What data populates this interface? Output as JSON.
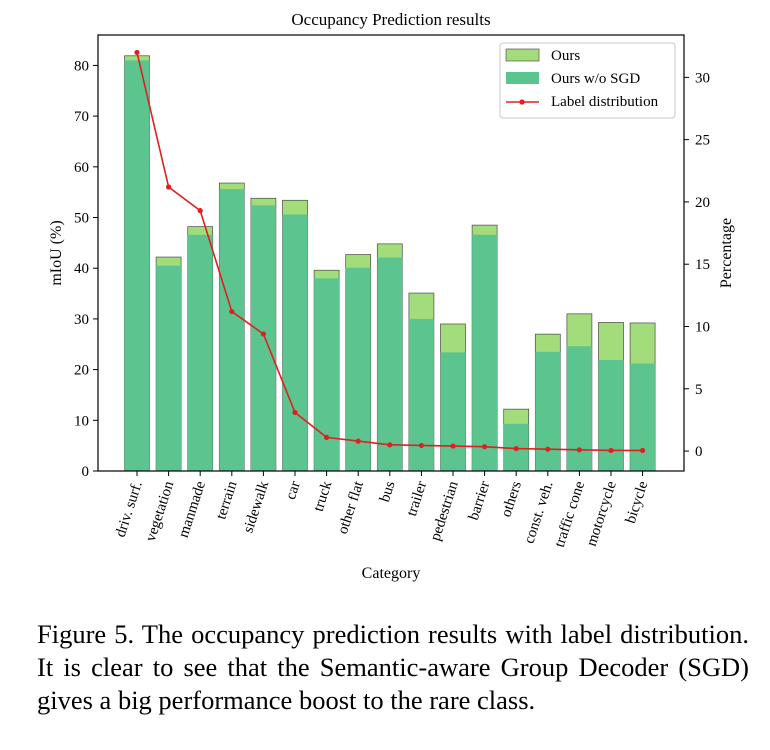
{
  "chart_data": {
    "type": "bar",
    "title": "Occupancy Prediction results",
    "xlabel": "Category",
    "ylabel": "mIoU (%)",
    "y2label": "Percentage",
    "ylim": [
      0,
      86
    ],
    "y2lim": [
      -1.6,
      33.4
    ],
    "yticks": [
      0,
      10,
      20,
      30,
      40,
      50,
      60,
      70,
      80
    ],
    "y2ticks": [
      0,
      5,
      10,
      15,
      20,
      25,
      30
    ],
    "legend_position": "top-right",
    "categories": [
      "driv. surf.",
      "vegetation",
      "manmade",
      "terrain",
      "sidewalk",
      "car",
      "truck",
      "other flat",
      "bus",
      "trailer",
      "pedestrian",
      "barrier",
      "others",
      "const. veh.",
      "traffic cone",
      "motorcycle",
      "bicycle"
    ],
    "series": [
      {
        "name": "Ours",
        "kind": "bar",
        "color": "#a3dc7a",
        "values": [
          81.9,
          42.2,
          48.2,
          56.8,
          53.8,
          53.4,
          39.6,
          42.7,
          44.8,
          35.1,
          29.0,
          48.5,
          12.2,
          27.0,
          31.0,
          29.3,
          29.2
        ]
      },
      {
        "name": "Ours w/o SGD",
        "kind": "bar",
        "color": "#5bc48f",
        "values": [
          81.0,
          40.5,
          46.6,
          55.6,
          52.4,
          50.6,
          38.0,
          40.1,
          42.1,
          30.0,
          23.4,
          46.6,
          9.3,
          23.5,
          24.6,
          21.9,
          21.2
        ]
      },
      {
        "name": "Label distribution",
        "kind": "line",
        "axis": "right",
        "color": "#e02020",
        "values": [
          32.0,
          21.2,
          19.3,
          11.2,
          9.4,
          3.1,
          1.1,
          0.8,
          0.5,
          0.45,
          0.4,
          0.35,
          0.2,
          0.15,
          0.1,
          0.05,
          0.05
        ]
      }
    ]
  },
  "caption": "Figure 5. The occupancy prediction results with label distribution. It is clear to see that the Semantic-aware Group Decoder (SGD) gives a big performance boost to the rare class."
}
